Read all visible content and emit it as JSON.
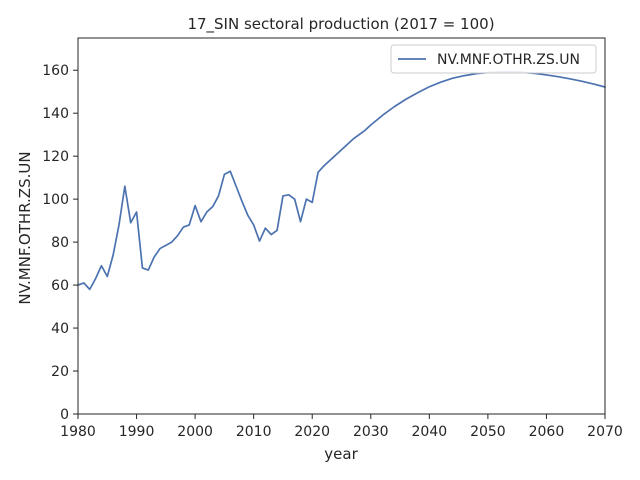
{
  "chart_data": {
    "type": "line",
    "title": "17_SIN sectoral production (2017 = 100)",
    "xlabel": "year",
    "ylabel": "NV.MNF.OTHR.ZS.UN",
    "xlim": [
      1980,
      2070
    ],
    "ylim": [
      0,
      175
    ],
    "xticks": [
      1980,
      1990,
      2000,
      2010,
      2020,
      2030,
      2040,
      2050,
      2060,
      2070
    ],
    "yticks": [
      0,
      20,
      40,
      60,
      80,
      100,
      120,
      140,
      160
    ],
    "grid": false,
    "legend_position": "upper right",
    "series": [
      {
        "name": "NV.MNF.OTHR.ZS.UN",
        "color": "#4c72b0",
        "x": [
          1980,
          1981,
          1982,
          1983,
          1984,
          1985,
          1986,
          1987,
          1988,
          1989,
          1990,
          1991,
          1992,
          1993,
          1994,
          1995,
          1996,
          1997,
          1998,
          1999,
          2000,
          2001,
          2002,
          2003,
          2004,
          2005,
          2006,
          2007,
          2008,
          2009,
          2010,
          2011,
          2012,
          2013,
          2014,
          2015,
          2016,
          2017,
          2018,
          2019,
          2020,
          2021,
          2022,
          2023,
          2024,
          2025,
          2026,
          2027,
          2028,
          2029,
          2030,
          2032,
          2034,
          2036,
          2038,
          2040,
          2042,
          2044,
          2046,
          2048,
          2050,
          2052,
          2054,
          2056,
          2058,
          2060,
          2062,
          2064,
          2066,
          2068,
          2070
        ],
        "y": [
          60,
          61,
          58,
          63,
          69,
          64,
          74,
          88,
          106,
          89,
          94,
          68,
          67,
          73,
          77,
          78.5,
          80,
          83,
          87,
          88,
          97,
          89.5,
          94,
          96.5,
          101.5,
          111.5,
          113,
          106,
          99,
          92.5,
          88,
          80.5,
          86.5,
          83.5,
          85.5,
          101.5,
          102,
          100,
          89.5,
          100,
          98.5,
          112.5,
          115.5,
          118,
          120.5,
          123,
          125.5,
          128,
          130,
          132,
          134.5,
          139,
          143,
          146.5,
          149.5,
          152.3,
          154.5,
          156.3,
          157.5,
          158.4,
          158.9,
          159.1,
          159.2,
          159.0,
          158.5,
          157.8,
          157.0,
          156.0,
          154.9,
          153.6,
          152.2
        ]
      }
    ]
  }
}
